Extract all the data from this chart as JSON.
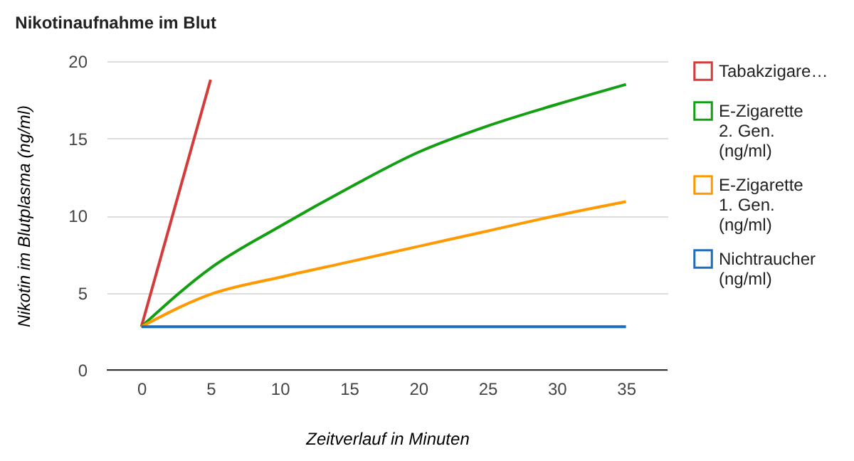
{
  "chart_data": {
    "type": "line",
    "title": "Nikotinaufnahme im Blut",
    "xlabel": "Zeitverlauf in Minuten",
    "ylabel": "Nikotin im Blutplasma (ng/ml)",
    "xlim": [
      -2.5,
      38
    ],
    "xticks": [
      0,
      5,
      10,
      15,
      20,
      25,
      30,
      35
    ],
    "ylim": [
      0,
      20
    ],
    "yticks": [
      0,
      5,
      10,
      15,
      20
    ],
    "grid": "y",
    "legend": "right",
    "series": [
      {
        "name": "Tabakzigare…",
        "color": "#d43b3b",
        "x": [
          0,
          5
        ],
        "values": [
          2.8,
          18.8
        ]
      },
      {
        "name": "E-Zigarette 2. Gen. (ng/ml)",
        "color": "#12a012",
        "x": [
          0,
          5,
          10,
          15,
          20,
          25,
          30,
          35
        ],
        "values": [
          2.8,
          6.6,
          9.3,
          11.8,
          14.1,
          15.8,
          17.2,
          18.5
        ]
      },
      {
        "name": "E-Zigarette 1. Gen. (ng/ml)",
        "color": "#ff9900",
        "x": [
          0,
          5,
          10,
          15,
          20,
          25,
          30,
          35
        ],
        "values": [
          2.8,
          4.9,
          6.0,
          7.0,
          8.0,
          9.0,
          10.0,
          10.9
        ]
      },
      {
        "name": "Nichtraucher (ng/ml)",
        "color": "#1c6ebd",
        "x": [
          0,
          35
        ],
        "values": [
          2.8,
          2.8
        ]
      }
    ]
  }
}
